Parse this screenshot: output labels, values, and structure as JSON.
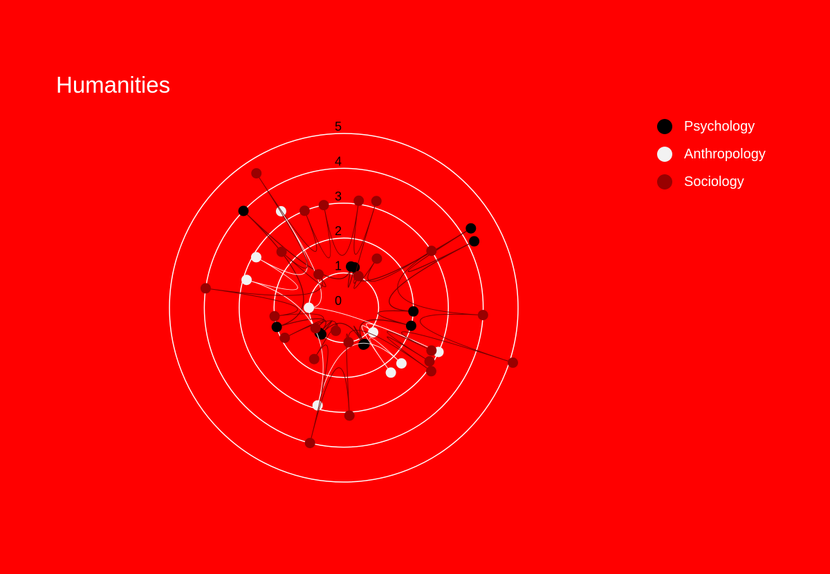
{
  "chart_data": {
    "type": "radar",
    "title": "Humanities",
    "background_color": "#ff0000",
    "grid_color": "#ffffff",
    "radial_range": [
      0,
      5
    ],
    "radial_ticks": [
      "0",
      "1",
      "2",
      "3",
      "4",
      "5"
    ],
    "legend_position": "top-right",
    "series": [
      {
        "name": "Psychology",
        "color": "#000000",
        "points": [
          {
            "theta": 80,
            "r": 1.2
          },
          {
            "theta": 75,
            "r": 1.2
          },
          {
            "theta": 32,
            "r": 4.3
          },
          {
            "theta": 27,
            "r": 4.2
          },
          {
            "theta": -3,
            "r": 2.0
          },
          {
            "theta": -15,
            "r": 2.0
          },
          {
            "theta": -60,
            "r": 1.2
          },
          {
            "theta": -62,
            "r": 1.2
          },
          {
            "theta": -130,
            "r": 1.0
          },
          {
            "theta": -134,
            "r": 1.0
          },
          {
            "theta": -164,
            "r": 2.0
          },
          {
            "theta": 136,
            "r": 4.0
          }
        ]
      },
      {
        "name": "Anthropology",
        "color": "#f2f2f2",
        "points": [
          {
            "theta": 180,
            "r": 1.0
          },
          {
            "theta": -25,
            "r": 3.0
          },
          {
            "theta": -40,
            "r": 1.1
          },
          {
            "theta": -54,
            "r": 2.3
          },
          {
            "theta": -44,
            "r": 2.3
          },
          {
            "theta": -105,
            "r": 2.9
          },
          {
            "theta": 164,
            "r": 2.9
          },
          {
            "theta": 150,
            "r": 2.9
          },
          {
            "theta": 123,
            "r": 3.3
          }
        ]
      },
      {
        "name": "Sociology",
        "color": "#990000",
        "points": [
          {
            "theta": 65,
            "r": 1.0
          },
          {
            "theta": 56,
            "r": 1.7
          },
          {
            "theta": 33,
            "r": 3.0
          },
          {
            "theta": -3,
            "r": 4.0
          },
          {
            "theta": -18,
            "r": 5.1
          },
          {
            "theta": -26,
            "r": 2.8
          },
          {
            "theta": -32,
            "r": 2.9
          },
          {
            "theta": -36,
            "r": 3.1
          },
          {
            "theta": -82,
            "r": 1.0
          },
          {
            "theta": -87,
            "r": 3.1
          },
          {
            "theta": -104,
            "r": 4.0
          },
          {
            "theta": -120,
            "r": 1.7
          },
          {
            "theta": -109,
            "r": 0.7
          },
          {
            "theta": -153,
            "r": 1.9
          },
          {
            "theta": -144,
            "r": 1.0
          },
          {
            "theta": -173,
            "r": 2.0
          },
          {
            "theta": 172,
            "r": 4.0
          },
          {
            "theta": 127,
            "r": 1.2
          },
          {
            "theta": 138,
            "r": 2.4
          },
          {
            "theta": 123,
            "r": 4.6
          },
          {
            "theta": 112,
            "r": 3.0
          },
          {
            "theta": 101,
            "r": 3.0
          },
          {
            "theta": 82,
            "r": 3.1
          },
          {
            "theta": 73,
            "r": 3.2
          }
        ]
      }
    ]
  }
}
